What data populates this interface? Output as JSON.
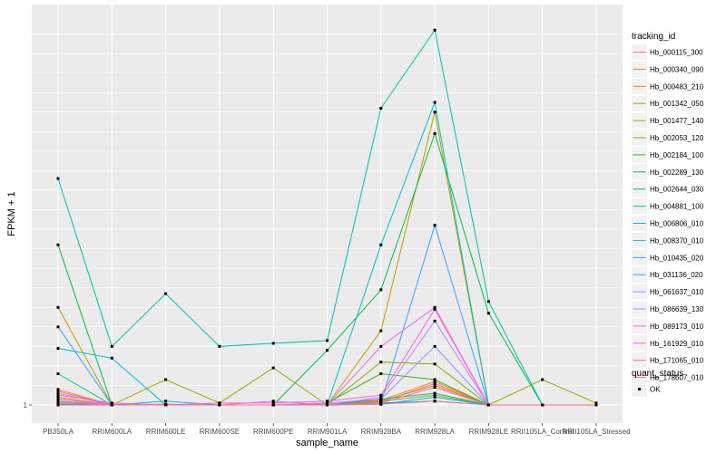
{
  "chart_data": {
    "type": "line",
    "xlabel": "sample_name",
    "ylabel": "FPKM + 1",
    "y_tick_labels": [
      "1"
    ],
    "y_tick_values": [
      1
    ],
    "ylim": [
      0.7,
      9.3
    ],
    "grid": true,
    "legend_placement": "right",
    "categories": [
      "PB350LA",
      "RRIM600LA",
      "RRIM600LE",
      "RRIM600SE",
      "RRIM600PE",
      "RRIM901LA",
      "RRIM928BA",
      "RRIM928LA",
      "RRIM928LE",
      "RRII105LA_Control",
      "RRII105LA_Stressed"
    ],
    "legend_title": "tracking_id",
    "series": [
      {
        "name": "Hb_000115_300",
        "color": "#F8766D",
        "values": [
          1.35,
          1.0,
          1.0,
          1.0,
          1.0,
          1.0,
          1.08,
          1.55,
          1.0,
          1.0,
          1.0
        ]
      },
      {
        "name": "Hb_000340_090",
        "color": "#EA8331",
        "values": [
          1.4,
          1.0,
          1.0,
          1.0,
          1.0,
          1.02,
          1.12,
          1.6,
          1.0,
          1.0,
          1.0
        ]
      },
      {
        "name": "Hb_000483_210",
        "color": "#D89000",
        "values": [
          1.2,
          1.0,
          1.02,
          1.0,
          1.0,
          1.0,
          1.1,
          1.5,
          1.0,
          1.0,
          1.0
        ]
      },
      {
        "name": "Hb_001342_050",
        "color": "#C09B00",
        "values": [
          3.5,
          1.0,
          1.0,
          1.0,
          1.0,
          1.0,
          2.9,
          8.5,
          1.0,
          1.0,
          1.0
        ]
      },
      {
        "name": "Hb_001477_140",
        "color": "#A3A500",
        "values": [
          1.05,
          1.0,
          1.65,
          1.05,
          1.95,
          1.0,
          1.1,
          1.25,
          1.0,
          1.65,
          1.05
        ]
      },
      {
        "name": "Hb_002053_120",
        "color": "#7CAE00",
        "values": [
          1.1,
          1.0,
          1.0,
          1.0,
          1.0,
          1.0,
          2.1,
          2.05,
          1.0,
          1.0,
          1.0
        ]
      },
      {
        "name": "Hb_002184_100",
        "color": "#39B600",
        "values": [
          1.15,
          1.0,
          1.0,
          1.0,
          1.0,
          1.05,
          1.8,
          1.65,
          1.0,
          1.0,
          1.0
        ]
      },
      {
        "name": "Hb_002289_130",
        "color": "#00BB4E",
        "values": [
          5.1,
          1.0,
          1.0,
          1.0,
          1.0,
          2.4,
          3.95,
          7.95,
          3.35,
          1.0,
          1.0
        ]
      },
      {
        "name": "Hb_002644_030",
        "color": "#00BF7D",
        "values": [
          1.8,
          1.0,
          1.0,
          1.0,
          1.0,
          1.0,
          1.15,
          1.3,
          1.0,
          1.0,
          1.0
        ]
      },
      {
        "name": "Hb_004881_100",
        "color": "#00C1A3",
        "values": [
          6.8,
          2.5,
          3.85,
          2.5,
          2.58,
          2.65,
          8.6,
          10.6,
          3.65,
          1.0,
          1.0
        ]
      },
      {
        "name": "Hb_006806_010",
        "color": "#00BFC4",
        "values": [
          2.45,
          2.2,
          1.0,
          1.0,
          1.0,
          1.0,
          5.1,
          8.75,
          1.0,
          1.0,
          1.0
        ]
      },
      {
        "name": "Hb_008370_010",
        "color": "#00BAE0",
        "values": [
          1.0,
          1.0,
          1.1,
          1.0,
          1.0,
          1.0,
          1.05,
          1.1,
          1.0,
          1.0,
          1.0
        ]
      },
      {
        "name": "Hb_010435_020",
        "color": "#00B0F6",
        "values": [
          1.02,
          1.0,
          1.0,
          1.0,
          1.0,
          1.0,
          1.02,
          1.2,
          1.0,
          1.0,
          1.0
        ]
      },
      {
        "name": "Hb_031136_020",
        "color": "#35A2FF",
        "values": [
          3.0,
          1.0,
          1.0,
          1.0,
          1.0,
          1.0,
          1.05,
          5.6,
          1.0,
          1.0,
          1.0
        ]
      },
      {
        "name": "Hb_061637_010",
        "color": "#9590FF",
        "values": [
          1.1,
          1.0,
          1.0,
          1.0,
          1.0,
          1.05,
          1.15,
          2.5,
          1.0,
          1.0,
          1.0
        ]
      },
      {
        "name": "Hb_086639_130",
        "color": "#C77CFF",
        "values": [
          1.15,
          1.0,
          1.0,
          1.0,
          1.0,
          1.0,
          1.2,
          3.15,
          1.0,
          1.0,
          1.0
        ]
      },
      {
        "name": "Hb_089173_010",
        "color": "#E76BF3",
        "values": [
          1.3,
          1.0,
          1.0,
          1.0,
          1.1,
          1.0,
          2.5,
          3.5,
          1.0,
          1.0,
          1.0
        ]
      },
      {
        "name": "Hb_161929_010",
        "color": "#FA62DB",
        "values": [
          1.25,
          1.05,
          1.0,
          1.05,
          1.05,
          1.1,
          1.25,
          3.45,
          1.0,
          1.0,
          1.0
        ]
      },
      {
        "name": "Hb_171065_010",
        "color": "#FF62BC",
        "values": [
          1.08,
          1.0,
          1.0,
          1.0,
          1.0,
          1.0,
          1.05,
          1.45,
          1.0,
          1.0,
          1.0
        ]
      },
      {
        "name": "Hb_178607_010",
        "color": "#FF6C91",
        "values": [
          1.0,
          1.0,
          1.0,
          1.0,
          1.0,
          1.0,
          1.02,
          1.1,
          1.0,
          1.0,
          1.0
        ]
      }
    ],
    "shape_legend": {
      "title": "quant_status",
      "items": [
        "OK"
      ]
    }
  }
}
